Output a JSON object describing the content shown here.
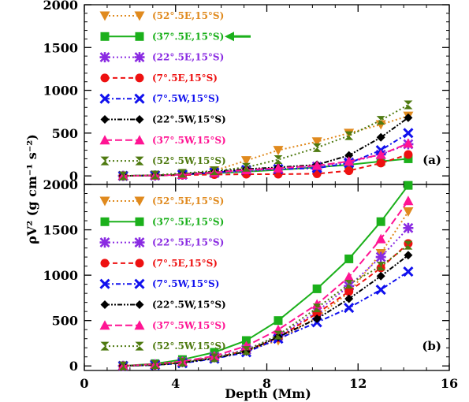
{
  "chart_data": [
    {
      "type": "line",
      "panel_label": "(a)",
      "ylim": [
        -100,
        2000
      ],
      "xlim": [
        0,
        16
      ],
      "yticks": [
        0,
        500,
        1000,
        1500,
        2000
      ],
      "xticks": [
        0,
        4,
        8,
        12,
        16
      ],
      "series": [
        {
          "name": "(52°.5E,15°S)",
          "color": "#e08a1e",
          "marker": "tri-down",
          "dash": "2,3",
          "x": [
            1.7,
            3.1,
            4.3,
            5.7,
            7.1,
            8.5,
            10.2,
            11.6,
            13.0,
            14.2
          ],
          "y": [
            0,
            5,
            20,
            60,
            180,
            300,
            400,
            500,
            600,
            700
          ]
        },
        {
          "name": "(37°.5E,15°S)",
          "color": "#1bb01b",
          "marker": "square",
          "dash": "",
          "x": [
            1.7,
            3.1,
            4.3,
            5.7,
            7.1,
            8.5,
            10.2,
            11.6,
            13.0,
            14.2
          ],
          "y": [
            0,
            5,
            15,
            30,
            50,
            70,
            100,
            130,
            170,
            200
          ]
        },
        {
          "name": "(22°.5E,15°S)",
          "color": "#8a2be2",
          "marker": "star",
          "dash": "2,3",
          "x": [
            1.7,
            3.1,
            4.3,
            5.7,
            7.1,
            8.5,
            10.2,
            11.6,
            13.0,
            14.2
          ],
          "y": [
            0,
            5,
            15,
            35,
            55,
            80,
            110,
            160,
            250,
            370
          ]
        },
        {
          "name": "(7°.5E,15°S)",
          "color": "#ee1111",
          "marker": "circle",
          "dash": "6,4",
          "x": [
            1.7,
            3.1,
            4.3,
            5.7,
            7.1,
            8.5,
            10.2,
            11.6,
            13.0,
            14.2
          ],
          "y": [
            0,
            5,
            10,
            15,
            20,
            20,
            25,
            60,
            150,
            250
          ]
        },
        {
          "name": "(7°.5W,15°S)",
          "color": "#1111ee",
          "marker": "x",
          "dash": "6,3,2,3",
          "x": [
            1.7,
            3.1,
            4.3,
            5.7,
            7.1,
            8.5,
            10.2,
            11.6,
            13.0,
            14.2
          ],
          "y": [
            0,
            5,
            15,
            40,
            70,
            80,
            90,
            150,
            300,
            500
          ]
        },
        {
          "name": "(22°.5W,15°S)",
          "color": "#000000",
          "marker": "diamond",
          "dash": "6,2,2,2,2,2",
          "x": [
            1.7,
            3.1,
            4.3,
            5.7,
            7.1,
            8.5,
            10.2,
            11.6,
            13.0,
            14.2
          ],
          "y": [
            0,
            5,
            20,
            50,
            80,
            100,
            130,
            240,
            450,
            680
          ]
        },
        {
          "name": "(37°.5W,15°S)",
          "color": "#ff1493",
          "marker": "triangle",
          "dash": "9,4",
          "x": [
            1.7,
            3.1,
            4.3,
            5.7,
            7.1,
            8.5,
            10.2,
            11.6,
            13.0,
            14.2
          ],
          "y": [
            0,
            5,
            15,
            40,
            70,
            90,
            120,
            170,
            250,
            380
          ]
        },
        {
          "name": "(52°.5W,15°S)",
          "color": "#4e7a10",
          "marker": "hourglass",
          "dash": "2,3",
          "x": [
            1.7,
            3.1,
            4.3,
            5.7,
            7.1,
            8.5,
            10.2,
            11.6,
            13.0,
            14.2
          ],
          "y": [
            0,
            10,
            30,
            60,
            100,
            190,
            330,
            470,
            650,
            830
          ]
        }
      ]
    },
    {
      "type": "line",
      "panel_label": "(b)",
      "ylim": [
        -50,
        2000
      ],
      "xlim": [
        0,
        16
      ],
      "yticks": [
        0,
        500,
        1000,
        1500,
        2000
      ],
      "xticks": [
        0,
        4,
        8,
        12,
        16
      ],
      "xtick_labels": [
        "0",
        "4",
        "8",
        "12",
        "16"
      ],
      "series": [
        {
          "name": "(52°.5E,15°S)",
          "color": "#e08a1e",
          "marker": "tri-down",
          "dash": "2,3",
          "x": [
            1.7,
            3.1,
            4.3,
            5.7,
            7.1,
            8.5,
            10.2,
            11.6,
            13.0,
            14.2
          ],
          "y": [
            0,
            15,
            45,
            100,
            170,
            280,
            540,
            810,
            1240,
            1700
          ]
        },
        {
          "name": "(37°.5E,15°S)",
          "color": "#1bb01b",
          "marker": "square",
          "dash": "",
          "x": [
            1.7,
            3.1,
            4.3,
            5.7,
            7.1,
            8.5,
            10.2,
            11.6,
            13.0,
            14.2
          ],
          "y": [
            0,
            25,
            70,
            150,
            280,
            500,
            850,
            1180,
            1590,
            1990
          ]
        },
        {
          "name": "(22°.5E,15°S)",
          "color": "#8a2be2",
          "marker": "star",
          "dash": "2,3",
          "x": [
            1.7,
            3.1,
            4.3,
            5.7,
            7.1,
            8.5,
            10.2,
            11.6,
            13.0,
            14.2
          ],
          "y": [
            0,
            15,
            45,
            100,
            180,
            330,
            600,
            880,
            1200,
            1520
          ]
        },
        {
          "name": "(7°.5E,15°S)",
          "color": "#ee1111",
          "marker": "circle",
          "dash": "6,4",
          "x": [
            1.7,
            3.1,
            4.3,
            5.7,
            7.1,
            8.5,
            10.2,
            11.6,
            13.0,
            14.2
          ],
          "y": [
            0,
            10,
            40,
            90,
            170,
            310,
            580,
            820,
            1080,
            1350
          ]
        },
        {
          "name": "(7°.5W,15°S)",
          "color": "#1111ee",
          "marker": "x",
          "dash": "6,3,2,3",
          "x": [
            1.7,
            3.1,
            4.3,
            5.7,
            7.1,
            8.5,
            10.2,
            11.6,
            13.0,
            14.2
          ],
          "y": [
            0,
            10,
            30,
            80,
            150,
            300,
            480,
            640,
            840,
            1040
          ]
        },
        {
          "name": "(22°.5W,15°S)",
          "color": "#000000",
          "marker": "diamond",
          "dash": "6,2,2,2,2,2",
          "x": [
            1.7,
            3.1,
            4.3,
            5.7,
            7.1,
            8.5,
            10.2,
            11.6,
            13.0,
            14.2
          ],
          "y": [
            0,
            10,
            35,
            85,
            160,
            320,
            520,
            740,
            990,
            1220
          ]
        },
        {
          "name": "(37°.5W,15°S)",
          "color": "#ff1493",
          "marker": "triangle",
          "dash": "9,4",
          "x": [
            1.7,
            3.1,
            4.3,
            5.7,
            7.1,
            8.5,
            10.2,
            11.6,
            13.0,
            14.2
          ],
          "y": [
            0,
            20,
            50,
            110,
            220,
            400,
            680,
            980,
            1400,
            1820
          ]
        },
        {
          "name": "(52°.5W,15°S)",
          "color": "#4e7a10",
          "marker": "hourglass",
          "dash": "2,3",
          "x": [
            1.7,
            3.1,
            4.3,
            5.7,
            7.1,
            8.5,
            10.2,
            11.6,
            13.0,
            14.2
          ],
          "y": [
            0,
            15,
            40,
            90,
            170,
            340,
            640,
            900,
            1100,
            1330
          ]
        }
      ]
    }
  ],
  "xlabel": "Depth (Mm)",
  "ylabel": "ρV² (g cm⁻¹ s⁻²)",
  "highlight_arrow": {
    "panel": 0,
    "series": "(37°.5E,15°S)",
    "color": "#1bb01b"
  }
}
